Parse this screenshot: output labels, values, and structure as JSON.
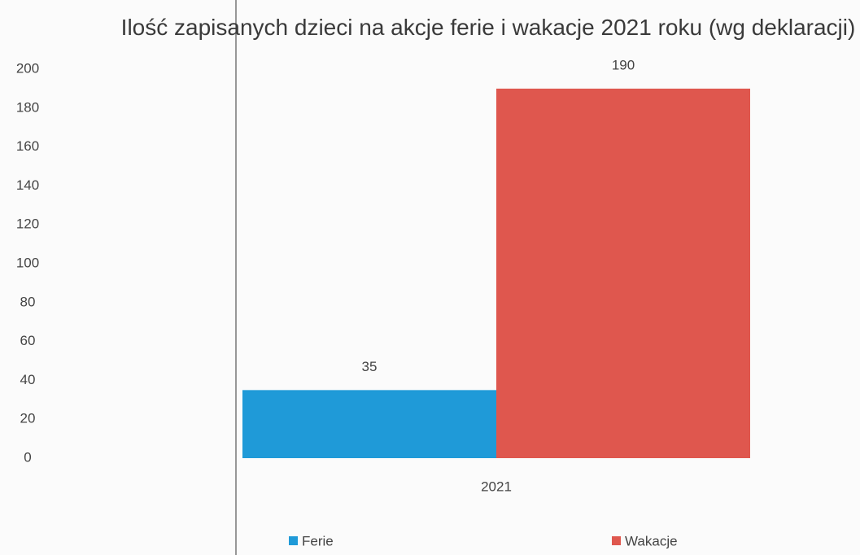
{
  "chart_data": {
    "type": "bar",
    "title": "Ilość zapisanych dzieci na akcje ferie i wakacje 2021 roku (wg deklaracji)",
    "categories": [
      "2021"
    ],
    "series": [
      {
        "name": "Ferie",
        "color": "#1f9ad8",
        "values": [
          35
        ]
      },
      {
        "name": "Wakacje",
        "color": "#df574e",
        "values": [
          190
        ]
      }
    ],
    "ylim": [
      0,
      200
    ],
    "yticks": [
      0,
      20,
      40,
      60,
      80,
      100,
      120,
      140,
      160,
      180,
      200
    ],
    "grid": false,
    "legend": "bottom"
  }
}
